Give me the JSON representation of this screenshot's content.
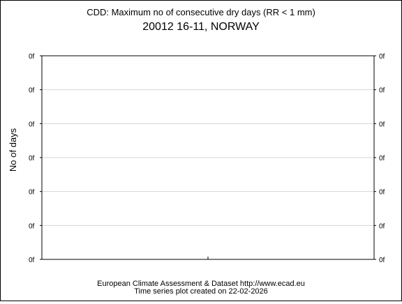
{
  "chart_data": {
    "type": "line",
    "title": "CDD: Maximum no of consecutive dry days (RR < 1 mm)",
    "subtitle": "20012 16-11, NORWAY",
    "ylabel": "No of days",
    "xlabel": "",
    "y_tick_labels": [
      "0f",
      "0f",
      "0f",
      "0f",
      "0f",
      "0f",
      "0f"
    ],
    "x_ticks_count": 1,
    "series": [],
    "grid": true,
    "colors": {
      "axis": "#000000",
      "grid": "#d3d3d3",
      "background": "#ffffff"
    }
  },
  "footer": {
    "line1": "European Climate Assessment & Dataset  http://www.ecad.eu",
    "line2": "Time series plot created on 22-02-2026"
  }
}
